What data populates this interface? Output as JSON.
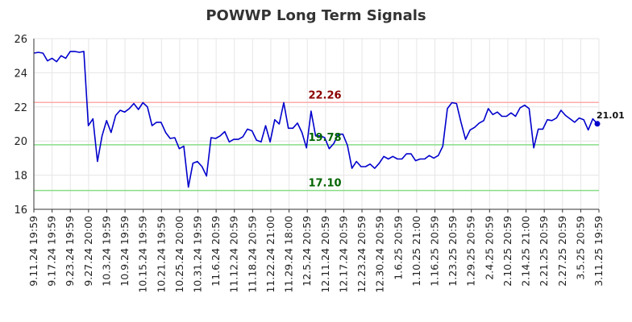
{
  "chart_data": {
    "type": "line",
    "title": "POWWP Long Term Signals",
    "xlabel": "",
    "ylabel": "",
    "ylim": [
      16,
      26
    ],
    "y_ticks": [
      16,
      18,
      20,
      22,
      24,
      26
    ],
    "x_tick_labels": [
      "9.11.24 19:59",
      "9.17.24 19:59",
      "9.23.24 19:59",
      "9.27.24 20:00",
      "10.3.24 19:59",
      "10.9.24 19:59",
      "10.15.24 19:59",
      "10.21.24 19:59",
      "10.25.24 20:00",
      "10.31.24 19:59",
      "11.6.24 20:59",
      "11.12.24 20:59",
      "11.18.24 20:59",
      "11.22.24 21:00",
      "11.29.24 18:00",
      "12.5.24 20:59",
      "12.11.24 20:59",
      "12.17.24 20:59",
      "12.23.24 20:59",
      "12.30.24 20:59",
      "1.6.25 20:59",
      "1.10.25 21:00",
      "1.16.25 20:59",
      "1.23.25 20:59",
      "1.29.25 20:59",
      "2.4.25 20:59",
      "2.10.25 20:59",
      "2.14.25 21:00",
      "2.21.25 20:59",
      "2.27.25 20:59",
      "3.5.25 20:59",
      "3.11.25 19:59"
    ],
    "grid": true,
    "colors": {
      "line": "#0000cc",
      "resistance": "#ffaaaa",
      "support": "#88dd88",
      "resistance_label": "#8b0000",
      "support_label": "#006400"
    },
    "horizontal_lines": [
      {
        "value": 22.26,
        "label": "22.26",
        "kind": "resistance"
      },
      {
        "value": 19.78,
        "label": "19.78",
        "kind": "support"
      },
      {
        "value": 17.1,
        "label": "17.10",
        "kind": "support"
      }
    ],
    "last_value": {
      "value": 21.01,
      "label": "21.01"
    },
    "series": [
      {
        "values": [
          25.15,
          25.2,
          25.15,
          24.7,
          24.85,
          24.65,
          25.0,
          24.85,
          25.25,
          25.25,
          25.2,
          25.25,
          20.9,
          21.3,
          18.8,
          20.3,
          21.2,
          20.5,
          21.5,
          21.8,
          21.7,
          21.9,
          22.2,
          21.85,
          22.25,
          22.0,
          20.9,
          21.1,
          21.1,
          20.5,
          20.15,
          20.2,
          19.55,
          19.7,
          17.3,
          18.7,
          18.8,
          18.5,
          17.95,
          20.2,
          20.15,
          20.3,
          20.55,
          19.95,
          20.1,
          20.1,
          20.25,
          20.7,
          20.6,
          20.05,
          19.95,
          20.9,
          19.95,
          21.25,
          21.0,
          22.25,
          20.75,
          20.75,
          21.05,
          20.5,
          19.6,
          21.75,
          20.3,
          20.3,
          20.2,
          19.55,
          19.85,
          20.4,
          20.4,
          19.75,
          18.4,
          18.8,
          18.5,
          18.5,
          18.65,
          18.4,
          18.7,
          19.1,
          18.95,
          19.1,
          18.95,
          18.95,
          19.25,
          19.25,
          18.85,
          18.95,
          18.95,
          19.15,
          19.0,
          19.15,
          19.7,
          21.9,
          22.25,
          22.2,
          21.1,
          20.1,
          20.65,
          20.8,
          21.05,
          21.2,
          21.9,
          21.55,
          21.7,
          21.45,
          21.45,
          21.65,
          21.45,
          21.95,
          22.1,
          21.9,
          19.6,
          20.7,
          20.7,
          21.25,
          21.2,
          21.35,
          21.8,
          21.5,
          21.3,
          21.1,
          21.35,
          21.25,
          20.65,
          21.3,
          21.01
        ]
      }
    ]
  }
}
